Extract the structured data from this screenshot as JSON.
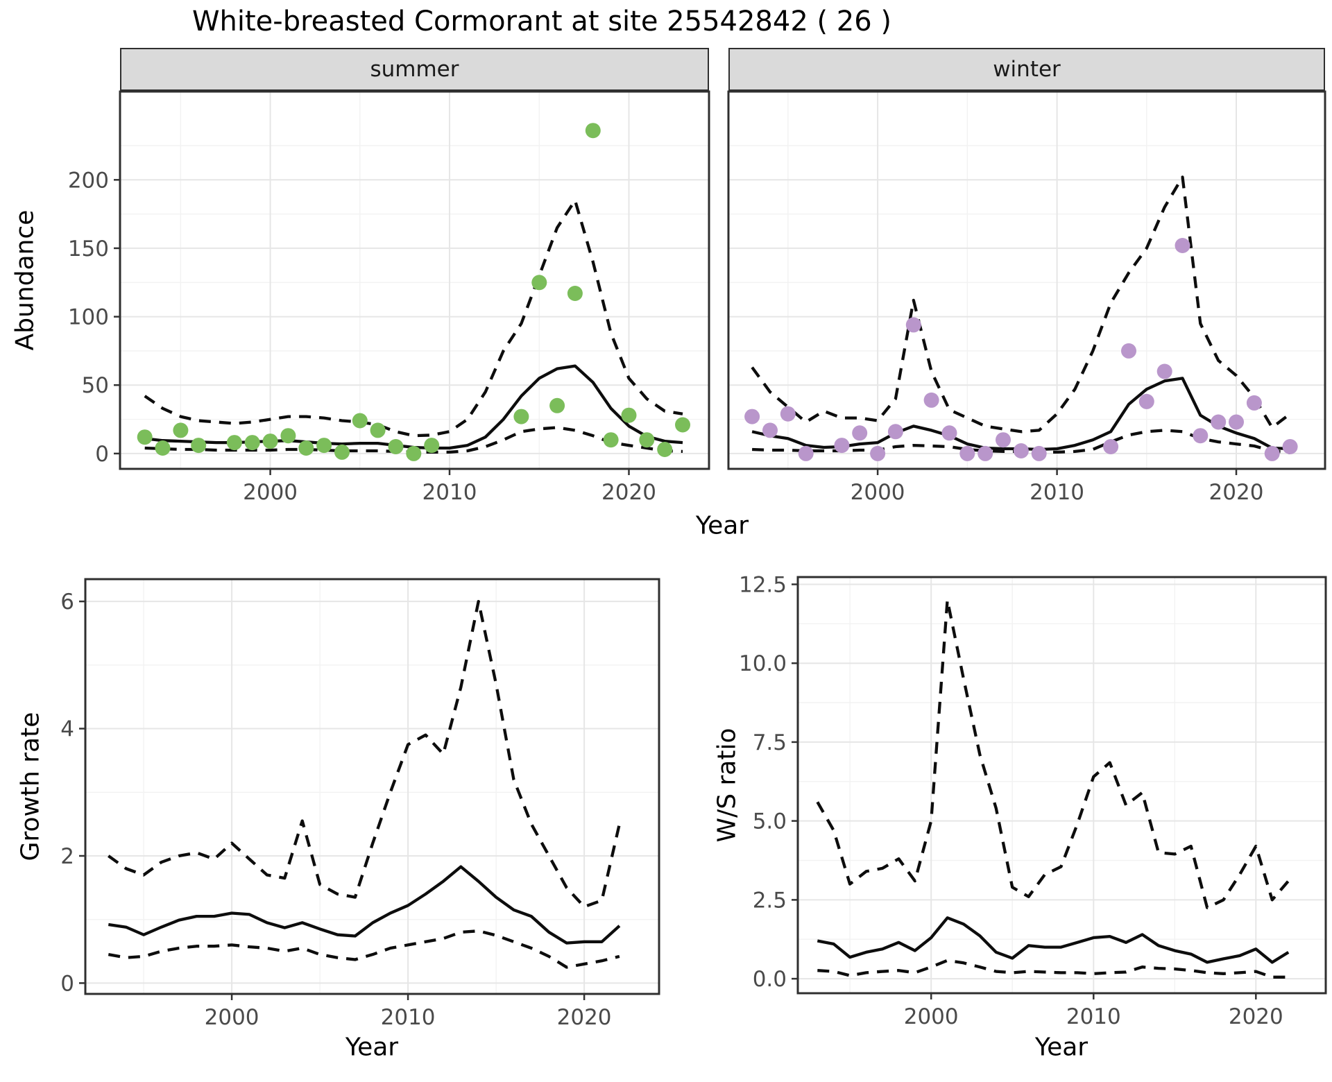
{
  "title": "White-breasted Cormorant at site 25542842 ( 26 )",
  "facets": {
    "summer": "summer",
    "winter": "winter"
  },
  "axes": {
    "abundance_label": "Abundance",
    "year_label": "Year",
    "growth_label": "Growth rate",
    "ws_label": "W/S ratio"
  },
  "colors": {
    "summer_point": "#7bbd5a",
    "winter_point": "#b996cb",
    "line": "#0d0d0d",
    "strip_bg": "#dadada",
    "grid_major": "#e6e6e6",
    "grid_minor": "#f2f2f2",
    "panel_border": "#2f2f2f",
    "axis_tick": "#333333",
    "tick_text": "#4a4a4a"
  },
  "chart_data": [
    {
      "id": "abundance-summer",
      "type": "line",
      "facet": "summer",
      "xlabel": "Year",
      "ylabel": "Abundance",
      "xlim": [
        1991.62,
        2024.47
      ],
      "ylim": [
        -11.2,
        264.5
      ],
      "x_ticks": [
        2000,
        2010,
        2020
      ],
      "x_minor": [
        1995,
        2005,
        2015
      ],
      "y_ticks": [
        0,
        50,
        100,
        150,
        200
      ],
      "y_minor": [
        25,
        75,
        125,
        175,
        225
      ],
      "years": [
        1993,
        1994,
        1995,
        1996,
        1997,
        1998,
        1999,
        2000,
        2001,
        2002,
        2003,
        2004,
        2005,
        2006,
        2007,
        2008,
        2009,
        2010,
        2011,
        2012,
        2013,
        2014,
        2015,
        2016,
        2017,
        2018,
        2019,
        2020,
        2021,
        2022,
        2023
      ],
      "series": [
        {
          "name": "fit",
          "style": "solid",
          "values": [
            11,
            9.5,
            9,
            8.5,
            8,
            8,
            8.5,
            9,
            9.5,
            8.5,
            7.5,
            7,
            7.5,
            7.5,
            6,
            4.5,
            4,
            4,
            6,
            12,
            25,
            42,
            55,
            62,
            64,
            52,
            33,
            20,
            12.5,
            9,
            8
          ]
        },
        {
          "name": "upper",
          "style": "dashed",
          "values": [
            42,
            33,
            27,
            24,
            23,
            22,
            23,
            25,
            27,
            27,
            26,
            24,
            23,
            21,
            16,
            13,
            13.5,
            16,
            25,
            45,
            75,
            95,
            130,
            165,
            185,
            140,
            88,
            55,
            40,
            31,
            29
          ]
        },
        {
          "name": "lower",
          "style": "dashed",
          "values": [
            4,
            3.5,
            3,
            3,
            2.5,
            2.5,
            2.5,
            2.5,
            3,
            3,
            2.5,
            2,
            2,
            2,
            1.5,
            1,
            1,
            1,
            2,
            5,
            10,
            16,
            18,
            19,
            17,
            13,
            8,
            6,
            4,
            2,
            1.5
          ]
        }
      ],
      "points": [
        [
          1993,
          12
        ],
        [
          1994,
          4
        ],
        [
          1995,
          17
        ],
        [
          1996,
          6
        ],
        [
          1998,
          8
        ],
        [
          1999,
          8
        ],
        [
          2000,
          9
        ],
        [
          2001,
          13
        ],
        [
          2002,
          4
        ],
        [
          2003,
          6
        ],
        [
          2004,
          1
        ],
        [
          2005,
          24
        ],
        [
          2006,
          17
        ],
        [
          2007,
          5
        ],
        [
          2008,
          0
        ],
        [
          2009,
          6
        ],
        [
          2014,
          27
        ],
        [
          2015,
          125
        ],
        [
          2016,
          35
        ],
        [
          2017,
          117
        ],
        [
          2018,
          236
        ],
        [
          2019,
          10
        ],
        [
          2020,
          28
        ],
        [
          2021,
          10
        ],
        [
          2022,
          3
        ],
        [
          2023,
          21
        ]
      ],
      "point_color": "#7bbd5a"
    },
    {
      "id": "abundance-winter",
      "type": "line",
      "facet": "winter",
      "xlabel": "Year",
      "ylabel": "Abundance",
      "xlim": [
        1991.68,
        2024.95
      ],
      "ylim": [
        -11.2,
        264.5
      ],
      "x_ticks": [
        2000,
        2010,
        2020
      ],
      "x_minor": [
        1995,
        2005,
        2015
      ],
      "y_ticks": [
        0,
        50,
        100,
        150,
        200
      ],
      "y_minor": [
        25,
        75,
        125,
        175,
        225
      ],
      "years": [
        1993,
        1994,
        1995,
        1996,
        1997,
        1998,
        1999,
        2000,
        2001,
        2002,
        2003,
        2004,
        2005,
        2006,
        2007,
        2008,
        2009,
        2010,
        2011,
        2012,
        2013,
        2014,
        2015,
        2016,
        2017,
        2018,
        2019,
        2020,
        2021,
        2022,
        2023
      ],
      "series": [
        {
          "name": "fit",
          "style": "solid",
          "values": [
            16,
            13,
            11,
            6,
            4.5,
            5,
            7,
            8,
            15,
            20,
            17,
            13,
            7,
            4,
            3.5,
            3.5,
            3,
            3.5,
            6,
            10,
            16,
            36,
            47,
            53,
            55,
            28,
            20,
            15,
            11,
            4,
            3.5
          ]
        },
        {
          "name": "upper",
          "style": "dashed",
          "values": [
            63,
            45,
            34,
            23,
            31,
            26,
            26,
            24,
            40,
            112,
            60,
            32,
            26,
            20,
            18,
            16,
            17,
            29,
            47,
            75,
            110,
            132,
            150,
            180,
            202,
            95,
            68,
            57,
            41,
            19,
            29
          ]
        },
        {
          "name": "lower",
          "style": "dashed",
          "values": [
            3,
            2.5,
            2.5,
            2,
            2,
            2,
            2.5,
            2.5,
            5,
            6,
            5.5,
            5,
            3,
            2,
            1.5,
            1.5,
            1,
            1,
            1.5,
            3,
            8.5,
            13.5,
            16,
            17,
            16,
            11,
            8.5,
            7,
            5.5,
            2,
            0.5
          ]
        }
      ],
      "points": [
        [
          1993,
          27
        ],
        [
          1994,
          17
        ],
        [
          1995,
          29
        ],
        [
          1996,
          0
        ],
        [
          1998,
          6
        ],
        [
          1999,
          15
        ],
        [
          2000,
          0
        ],
        [
          2001,
          16
        ],
        [
          2002,
          94
        ],
        [
          2003,
          39
        ],
        [
          2004,
          15
        ],
        [
          2005,
          0
        ],
        [
          2006,
          0
        ],
        [
          2007,
          10
        ],
        [
          2008,
          2
        ],
        [
          2009,
          0
        ],
        [
          2013,
          5
        ],
        [
          2014,
          75
        ],
        [
          2015,
          38
        ],
        [
          2016,
          60
        ],
        [
          2017,
          152
        ],
        [
          2018,
          13
        ],
        [
          2019,
          23
        ],
        [
          2020,
          23
        ],
        [
          2021,
          37
        ],
        [
          2022,
          0
        ],
        [
          2023,
          5
        ]
      ],
      "point_color": "#b996cb"
    },
    {
      "id": "growth-rate",
      "type": "line",
      "xlabel": "Year",
      "ylabel": "Growth rate",
      "xlim": [
        1991.69,
        2024.25
      ],
      "ylim": [
        -0.17,
        6.35
      ],
      "x_ticks": [
        2000,
        2010,
        2020
      ],
      "x_minor": [
        1995,
        2005,
        2015
      ],
      "y_ticks": [
        0,
        2,
        4,
        6
      ],
      "y_minor": [
        1,
        3,
        5
      ],
      "years": [
        1993,
        1994,
        1995,
        1996,
        1997,
        1998,
        1999,
        2000,
        2001,
        2002,
        2003,
        2004,
        2005,
        2006,
        2007,
        2008,
        2009,
        2010,
        2011,
        2012,
        2013,
        2014,
        2015,
        2016,
        2017,
        2018,
        2019,
        2020,
        2021,
        2022
      ],
      "series": [
        {
          "name": "fit",
          "style": "solid",
          "values": [
            0.92,
            0.88,
            0.76,
            0.88,
            0.99,
            1.05,
            1.05,
            1.1,
            1.08,
            0.95,
            0.87,
            0.95,
            0.85,
            0.76,
            0.74,
            0.95,
            1.1,
            1.22,
            1.4,
            1.6,
            1.83,
            1.6,
            1.35,
            1.15,
            1.05,
            0.8,
            0.63,
            0.65,
            0.65,
            0.9
          ]
        },
        {
          "name": "upper",
          "style": "dashed",
          "values": [
            2.0,
            1.8,
            1.7,
            1.9,
            2.0,
            2.05,
            1.95,
            2.2,
            1.95,
            1.7,
            1.65,
            2.55,
            1.55,
            1.4,
            1.35,
            2.2,
            3.0,
            3.75,
            3.9,
            3.6,
            4.65,
            6.0,
            4.7,
            3.2,
            2.5,
            2.0,
            1.5,
            1.2,
            1.3,
            2.5
          ]
        },
        {
          "name": "lower",
          "style": "dashed",
          "values": [
            0.45,
            0.4,
            0.42,
            0.5,
            0.55,
            0.58,
            0.58,
            0.6,
            0.57,
            0.55,
            0.5,
            0.55,
            0.45,
            0.4,
            0.37,
            0.45,
            0.55,
            0.6,
            0.65,
            0.7,
            0.8,
            0.82,
            0.75,
            0.65,
            0.55,
            0.42,
            0.25,
            0.3,
            0.35,
            0.42
          ]
        }
      ]
    },
    {
      "id": "ws-ratio",
      "type": "line",
      "xlabel": "Year",
      "ylabel": "W/S ratio",
      "xlim": [
        1991.79,
        2024.3
      ],
      "ylim": [
        -0.46,
        12.73
      ],
      "x_ticks": [
        2000,
        2010,
        2020
      ],
      "x_minor": [
        1995,
        2005,
        2015
      ],
      "y_ticks": [
        0,
        2.5,
        5,
        7.5,
        10,
        12.5
      ],
      "y_tick_labels": [
        "0.0",
        "2.5",
        "5.0",
        "7.5",
        "10.0",
        "12.5"
      ],
      "y_minor": [
        1.25,
        3.75,
        6.25,
        8.75,
        11.25
      ],
      "years": [
        1993,
        1994,
        1995,
        1996,
        1997,
        1998,
        1999,
        2000,
        2001,
        2002,
        2003,
        2004,
        2005,
        2006,
        2007,
        2008,
        2009,
        2010,
        2011,
        2012,
        2013,
        2014,
        2015,
        2016,
        2017,
        2018,
        2019,
        2020,
        2021,
        2022
      ],
      "series": [
        {
          "name": "fit",
          "style": "solid",
          "values": [
            1.2,
            1.1,
            0.68,
            0.84,
            0.94,
            1.15,
            0.89,
            1.3,
            1.93,
            1.73,
            1.36,
            0.84,
            0.65,
            1.05,
            1.0,
            1.0,
            1.15,
            1.3,
            1.34,
            1.15,
            1.4,
            1.05,
            0.89,
            0.78,
            0.52,
            0.63,
            0.73,
            0.94,
            0.52,
            0.84
          ]
        },
        {
          "name": "upper",
          "style": "dashed",
          "values": [
            5.6,
            4.7,
            3.0,
            3.4,
            3.5,
            3.8,
            3.1,
            5.0,
            12.0,
            9.5,
            7.1,
            5.4,
            2.9,
            2.6,
            3.3,
            3.55,
            4.9,
            6.4,
            6.85,
            5.5,
            5.9,
            4.0,
            3.95,
            4.2,
            2.25,
            2.5,
            3.3,
            4.2,
            2.5,
            3.1
          ]
        },
        {
          "name": "lower",
          "style": "dashed",
          "values": [
            0.26,
            0.23,
            0.1,
            0.19,
            0.23,
            0.26,
            0.19,
            0.37,
            0.58,
            0.5,
            0.37,
            0.23,
            0.19,
            0.23,
            0.21,
            0.19,
            0.19,
            0.16,
            0.19,
            0.21,
            0.37,
            0.33,
            0.31,
            0.26,
            0.19,
            0.16,
            0.19,
            0.23,
            0.05,
            0.05
          ]
        }
      ]
    }
  ]
}
